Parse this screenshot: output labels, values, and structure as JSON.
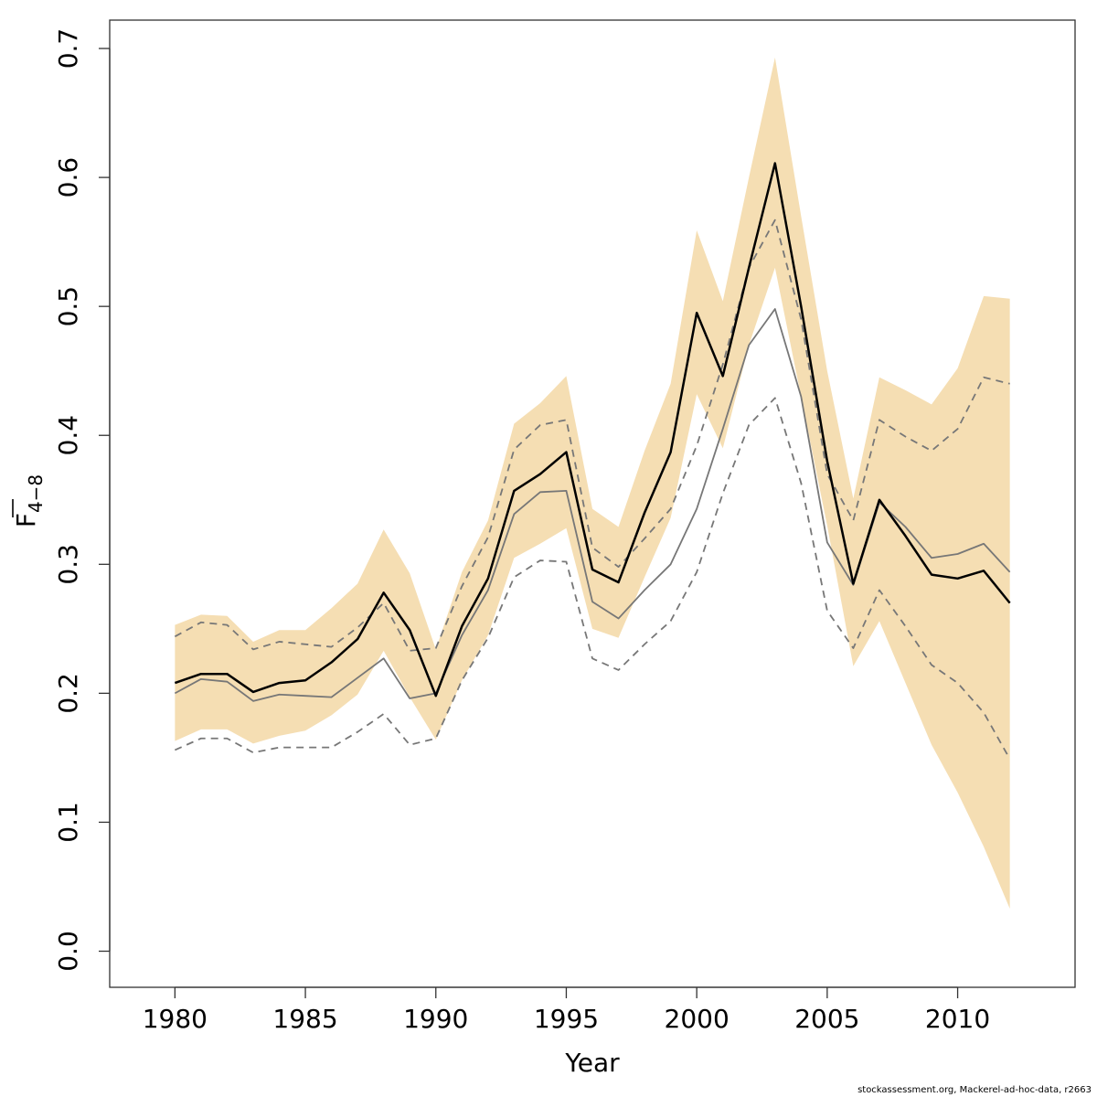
{
  "chart_data": {
    "type": "line",
    "xlabel": "Year",
    "ylabel": {
      "main": "F",
      "sub": "4−8"
    },
    "xlim": [
      1977.5,
      2014.5
    ],
    "ylim": [
      -0.028,
      0.722
    ],
    "x_ticks": [
      1980,
      1985,
      1990,
      1995,
      2000,
      2005,
      2010
    ],
    "y_ticks": [
      0.0,
      0.1,
      0.2,
      0.3,
      0.4,
      0.5,
      0.6,
      0.7
    ],
    "x": [
      1980,
      1981,
      1982,
      1983,
      1984,
      1985,
      1986,
      1987,
      1988,
      1989,
      1990,
      1991,
      1992,
      1993,
      1994,
      1995,
      1996,
      1997,
      1998,
      1999,
      2000,
      2001,
      2002,
      2003,
      2004,
      2005,
      2006,
      2007,
      2008,
      2009,
      2010,
      2011,
      2012
    ],
    "band": {
      "color": "#F5DEB3",
      "lower": [
        0.163,
        0.172,
        0.172,
        0.161,
        0.167,
        0.171,
        0.183,
        0.199,
        0.233,
        0.197,
        0.164,
        0.21,
        0.245,
        0.305,
        0.316,
        0.328,
        0.25,
        0.243,
        0.29,
        0.336,
        0.432,
        0.39,
        0.47,
        0.53,
        0.43,
        0.33,
        0.221,
        0.256,
        0.208,
        0.16,
        0.123,
        0.081,
        0.033
      ],
      "upper": [
        0.253,
        0.261,
        0.26,
        0.24,
        0.249,
        0.249,
        0.266,
        0.285,
        0.327,
        0.293,
        0.234,
        0.294,
        0.334,
        0.409,
        0.425,
        0.446,
        0.343,
        0.329,
        0.388,
        0.44,
        0.559,
        0.504,
        0.6,
        0.693,
        0.57,
        0.45,
        0.351,
        0.445,
        0.435,
        0.424,
        0.452,
        0.508,
        0.506
      ]
    },
    "series": [
      {
        "role": "estimate",
        "color": "#000000",
        "width": 2.5,
        "dash": "",
        "values": [
          0.208,
          0.215,
          0.215,
          0.201,
          0.208,
          0.21,
          0.224,
          0.242,
          0.278,
          0.249,
          0.198,
          0.252,
          0.289,
          0.357,
          0.37,
          0.387,
          0.296,
          0.286,
          0.34,
          0.387,
          0.495,
          0.446,
          0.53,
          0.611,
          0.5,
          0.38,
          0.285,
          0.35,
          0.322,
          0.292,
          0.289,
          0.295,
          0.27
        ]
      },
      {
        "role": "comparison-solid",
        "color": "#777777",
        "width": 1.8,
        "dash": "",
        "values": [
          0.2,
          0.211,
          0.209,
          0.194,
          0.199,
          0.198,
          0.197,
          0.212,
          0.227,
          0.196,
          0.2,
          0.245,
          0.28,
          0.339,
          0.356,
          0.357,
          0.271,
          0.258,
          0.28,
          0.3,
          0.343,
          0.405,
          0.47,
          0.498,
          0.43,
          0.317,
          0.284,
          0.348,
          0.329,
          0.305,
          0.308,
          0.316,
          0.294
        ]
      },
      {
        "role": "comparison-dashed-upper",
        "color": "#777777",
        "width": 1.8,
        "dash": "8,6",
        "values": [
          0.244,
          0.255,
          0.253,
          0.234,
          0.24,
          0.238,
          0.236,
          0.251,
          0.27,
          0.233,
          0.235,
          0.283,
          0.321,
          0.389,
          0.408,
          0.412,
          0.313,
          0.298,
          0.32,
          0.343,
          0.392,
          0.455,
          0.53,
          0.567,
          0.49,
          0.37,
          0.334,
          0.412,
          0.399,
          0.388,
          0.405,
          0.445,
          0.44
        ]
      },
      {
        "role": "comparison-dashed-lower",
        "color": "#777777",
        "width": 1.8,
        "dash": "8,6",
        "values": [
          0.156,
          0.165,
          0.165,
          0.154,
          0.158,
          0.158,
          0.158,
          0.17,
          0.184,
          0.16,
          0.165,
          0.21,
          0.243,
          0.29,
          0.303,
          0.302,
          0.227,
          0.218,
          0.238,
          0.256,
          0.294,
          0.355,
          0.408,
          0.429,
          0.363,
          0.264,
          0.235,
          0.28,
          0.252,
          0.222,
          0.208,
          0.185,
          0.149
        ]
      }
    ]
  },
  "footer": {
    "credit": "stockassessment.org, Mackerel-ad-hoc-data, r2663"
  }
}
